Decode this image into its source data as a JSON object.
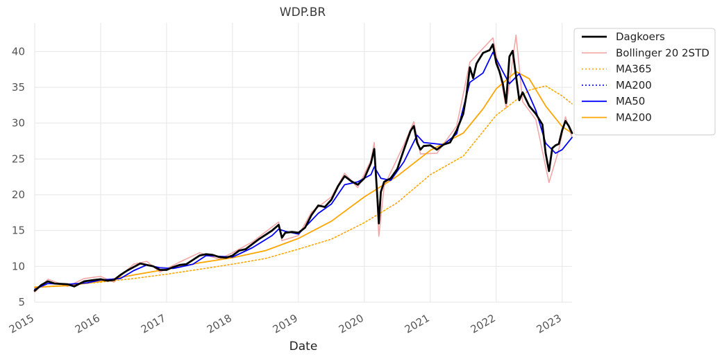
{
  "chart_data": {
    "type": "line",
    "title": "WDP.BR",
    "xlabel": "Date",
    "ylabel": "",
    "x_ticks": [
      "2015",
      "2016",
      "2017",
      "2018",
      "2019",
      "2020",
      "2021",
      "2022",
      "2023"
    ],
    "y_ticks": [
      "5",
      "10",
      "15",
      "20",
      "25",
      "30",
      "35",
      "40"
    ],
    "xlim": [
      2015.0,
      2023.15
    ],
    "ylim": [
      5,
      44
    ],
    "grid": true,
    "legend_position": "outside-right-top",
    "series": [
      {
        "name": "Dagkoers",
        "color": "#000000",
        "style": "solid",
        "points": [
          [
            2015.0,
            6.6
          ],
          [
            2015.1,
            7.4
          ],
          [
            2015.2,
            7.9
          ],
          [
            2015.3,
            7.6
          ],
          [
            2015.5,
            7.5
          ],
          [
            2015.6,
            7.2
          ],
          [
            2015.75,
            7.9
          ],
          [
            2015.9,
            8.1
          ],
          [
            2016.0,
            8.2
          ],
          [
            2016.1,
            8.0
          ],
          [
            2016.2,
            8.1
          ],
          [
            2016.3,
            8.8
          ],
          [
            2016.4,
            9.4
          ],
          [
            2016.5,
            9.9
          ],
          [
            2016.6,
            10.4
          ],
          [
            2016.7,
            10.2
          ],
          [
            2016.8,
            10.0
          ],
          [
            2016.9,
            9.5
          ],
          [
            2017.0,
            9.5
          ],
          [
            2017.1,
            9.9
          ],
          [
            2017.2,
            10.2
          ],
          [
            2017.3,
            10.3
          ],
          [
            2017.4,
            10.9
          ],
          [
            2017.5,
            11.5
          ],
          [
            2017.6,
            11.7
          ],
          [
            2017.7,
            11.6
          ],
          [
            2017.8,
            11.3
          ],
          [
            2017.9,
            11.2
          ],
          [
            2018.0,
            11.5
          ],
          [
            2018.1,
            12.2
          ],
          [
            2018.2,
            12.4
          ],
          [
            2018.3,
            13.1
          ],
          [
            2018.4,
            13.8
          ],
          [
            2018.5,
            14.4
          ],
          [
            2018.6,
            15.0
          ],
          [
            2018.7,
            15.8
          ],
          [
            2018.75,
            14.0
          ],
          [
            2018.8,
            14.7
          ],
          [
            2018.9,
            14.8
          ],
          [
            2019.0,
            14.7
          ],
          [
            2019.1,
            15.4
          ],
          [
            2019.2,
            17.2
          ],
          [
            2019.3,
            18.5
          ],
          [
            2019.4,
            18.3
          ],
          [
            2019.5,
            19.3
          ],
          [
            2019.6,
            21.2
          ],
          [
            2019.7,
            22.6
          ],
          [
            2019.8,
            21.9
          ],
          [
            2019.9,
            21.4
          ],
          [
            2020.0,
            22.3
          ],
          [
            2020.1,
            24.4
          ],
          [
            2020.15,
            26.4
          ],
          [
            2020.2,
            19.3
          ],
          [
            2020.22,
            16.0
          ],
          [
            2020.25,
            20.4
          ],
          [
            2020.3,
            21.8
          ],
          [
            2020.4,
            22.3
          ],
          [
            2020.5,
            23.6
          ],
          [
            2020.6,
            26.3
          ],
          [
            2020.7,
            28.9
          ],
          [
            2020.75,
            29.6
          ],
          [
            2020.8,
            27.3
          ],
          [
            2020.85,
            26.3
          ],
          [
            2020.9,
            26.8
          ],
          [
            2021.0,
            26.9
          ],
          [
            2021.1,
            26.3
          ],
          [
            2021.2,
            27.0
          ],
          [
            2021.3,
            27.3
          ],
          [
            2021.4,
            29.0
          ],
          [
            2021.5,
            31.3
          ],
          [
            2021.55,
            34.0
          ],
          [
            2021.6,
            37.8
          ],
          [
            2021.65,
            36.3
          ],
          [
            2021.7,
            38.3
          ],
          [
            2021.8,
            39.8
          ],
          [
            2021.9,
            40.2
          ],
          [
            2021.95,
            41.0
          ],
          [
            2022.0,
            38.4
          ],
          [
            2022.05,
            37.2
          ],
          [
            2022.1,
            35.5
          ],
          [
            2022.15,
            32.8
          ],
          [
            2022.2,
            39.3
          ],
          [
            2022.25,
            40.1
          ],
          [
            2022.3,
            36.6
          ],
          [
            2022.35,
            33.2
          ],
          [
            2022.4,
            34.3
          ],
          [
            2022.5,
            32.4
          ],
          [
            2022.6,
            31.3
          ],
          [
            2022.7,
            29.8
          ],
          [
            2022.75,
            25.8
          ],
          [
            2022.8,
            23.3
          ],
          [
            2022.85,
            26.5
          ],
          [
            2022.9,
            26.9
          ],
          [
            2022.95,
            27.1
          ],
          [
            2023.0,
            29.0
          ],
          [
            2023.05,
            30.3
          ],
          [
            2023.1,
            29.6
          ],
          [
            2023.15,
            28.6
          ]
        ]
      },
      {
        "name": "Bollinger 20 2STD",
        "color": "#f4a6a6",
        "style": "solid",
        "points": [
          [
            2015.0,
            6.4
          ],
          [
            2015.2,
            8.2
          ],
          [
            2015.5,
            7.2
          ],
          [
            2015.75,
            8.3
          ],
          [
            2016.0,
            8.6
          ],
          [
            2016.2,
            7.8
          ],
          [
            2016.5,
            10.3
          ],
          [
            2016.7,
            10.7
          ],
          [
            2016.9,
            9.2
          ],
          [
            2017.2,
            10.6
          ],
          [
            2017.5,
            11.9
          ],
          [
            2017.8,
            11.0
          ],
          [
            2018.0,
            11.9
          ],
          [
            2018.3,
            13.4
          ],
          [
            2018.7,
            16.2
          ],
          [
            2018.75,
            13.6
          ],
          [
            2019.0,
            14.3
          ],
          [
            2019.2,
            17.6
          ],
          [
            2019.5,
            19.7
          ],
          [
            2019.7,
            23.0
          ],
          [
            2019.9,
            21.0
          ],
          [
            2020.1,
            24.8
          ],
          [
            2020.15,
            27.3
          ],
          [
            2020.22,
            14.2
          ],
          [
            2020.3,
            21.2
          ],
          [
            2020.6,
            27.0
          ],
          [
            2020.75,
            30.2
          ],
          [
            2020.85,
            25.7
          ],
          [
            2021.1,
            25.8
          ],
          [
            2021.4,
            29.6
          ],
          [
            2021.6,
            38.5
          ],
          [
            2021.95,
            41.9
          ],
          [
            2022.1,
            34.7
          ],
          [
            2022.15,
            32.1
          ],
          [
            2022.3,
            42.3
          ],
          [
            2022.4,
            33.0
          ],
          [
            2022.6,
            30.5
          ],
          [
            2022.8,
            21.7
          ],
          [
            2022.95,
            26.3
          ],
          [
            2023.05,
            30.9
          ],
          [
            2023.15,
            28.0
          ]
        ]
      },
      {
        "name": "MA365",
        "color": "#ffa500",
        "style": "dotted",
        "points": [
          [
            2015.0,
            7.0
          ],
          [
            2015.5,
            7.4
          ],
          [
            2016.0,
            7.8
          ],
          [
            2016.5,
            8.3
          ],
          [
            2017.0,
            8.9
          ],
          [
            2017.5,
            9.6
          ],
          [
            2018.0,
            10.3
          ],
          [
            2018.5,
            11.1
          ],
          [
            2019.0,
            12.4
          ],
          [
            2019.5,
            13.8
          ],
          [
            2020.0,
            16.1
          ],
          [
            2020.5,
            18.9
          ],
          [
            2021.0,
            22.8
          ],
          [
            2021.5,
            25.4
          ],
          [
            2022.0,
            31.1
          ],
          [
            2022.5,
            34.6
          ],
          [
            2022.75,
            35.2
          ],
          [
            2023.0,
            33.8
          ],
          [
            2023.15,
            32.7
          ]
        ]
      },
      {
        "name": "MA200",
        "color": "#0000ff",
        "style": "dotted",
        "points": []
      },
      {
        "name": "MA50",
        "color": "#0000ff",
        "style": "solid",
        "points": [
          [
            2015.0,
            6.8
          ],
          [
            2015.2,
            7.6
          ],
          [
            2015.5,
            7.5
          ],
          [
            2015.8,
            7.7
          ],
          [
            2016.0,
            8.1
          ],
          [
            2016.3,
            8.3
          ],
          [
            2016.5,
            9.4
          ],
          [
            2016.7,
            10.2
          ],
          [
            2016.9,
            9.8
          ],
          [
            2017.1,
            9.7
          ],
          [
            2017.4,
            10.3
          ],
          [
            2017.6,
            11.5
          ],
          [
            2017.8,
            11.4
          ],
          [
            2018.0,
            11.3
          ],
          [
            2018.3,
            12.6
          ],
          [
            2018.6,
            14.3
          ],
          [
            2018.7,
            15.2
          ],
          [
            2018.8,
            14.9
          ],
          [
            2019.0,
            14.5
          ],
          [
            2019.3,
            17.4
          ],
          [
            2019.5,
            18.7
          ],
          [
            2019.7,
            21.4
          ],
          [
            2019.9,
            21.8
          ],
          [
            2020.1,
            22.8
          ],
          [
            2020.15,
            23.9
          ],
          [
            2020.25,
            22.3
          ],
          [
            2020.4,
            22.0
          ],
          [
            2020.6,
            24.6
          ],
          [
            2020.8,
            28.3
          ],
          [
            2020.9,
            27.3
          ],
          [
            2021.2,
            27.0
          ],
          [
            2021.4,
            28.5
          ],
          [
            2021.6,
            35.7
          ],
          [
            2021.8,
            37.0
          ],
          [
            2021.95,
            39.9
          ],
          [
            2022.1,
            37.2
          ],
          [
            2022.2,
            35.5
          ],
          [
            2022.35,
            36.9
          ],
          [
            2022.5,
            33.9
          ],
          [
            2022.6,
            31.8
          ],
          [
            2022.75,
            27.2
          ],
          [
            2022.9,
            25.8
          ],
          [
            2023.0,
            26.3
          ],
          [
            2023.15,
            28.0
          ]
        ]
      },
      {
        "name": "MA200",
        "color": "#ffa500",
        "style": "solid",
        "points": [
          [
            2015.0,
            7.1
          ],
          [
            2015.5,
            7.3
          ],
          [
            2016.0,
            7.9
          ],
          [
            2016.5,
            8.8
          ],
          [
            2017.0,
            9.6
          ],
          [
            2017.5,
            10.5
          ],
          [
            2018.0,
            11.2
          ],
          [
            2018.5,
            12.2
          ],
          [
            2019.0,
            13.9
          ],
          [
            2019.5,
            16.3
          ],
          [
            2020.0,
            19.7
          ],
          [
            2020.5,
            22.6
          ],
          [
            2021.0,
            26.2
          ],
          [
            2021.5,
            28.6
          ],
          [
            2021.8,
            32.0
          ],
          [
            2022.0,
            34.8
          ],
          [
            2022.3,
            37.2
          ],
          [
            2022.5,
            36.2
          ],
          [
            2022.75,
            32.4
          ],
          [
            2023.0,
            29.5
          ],
          [
            2023.15,
            28.6
          ]
        ]
      }
    ]
  }
}
